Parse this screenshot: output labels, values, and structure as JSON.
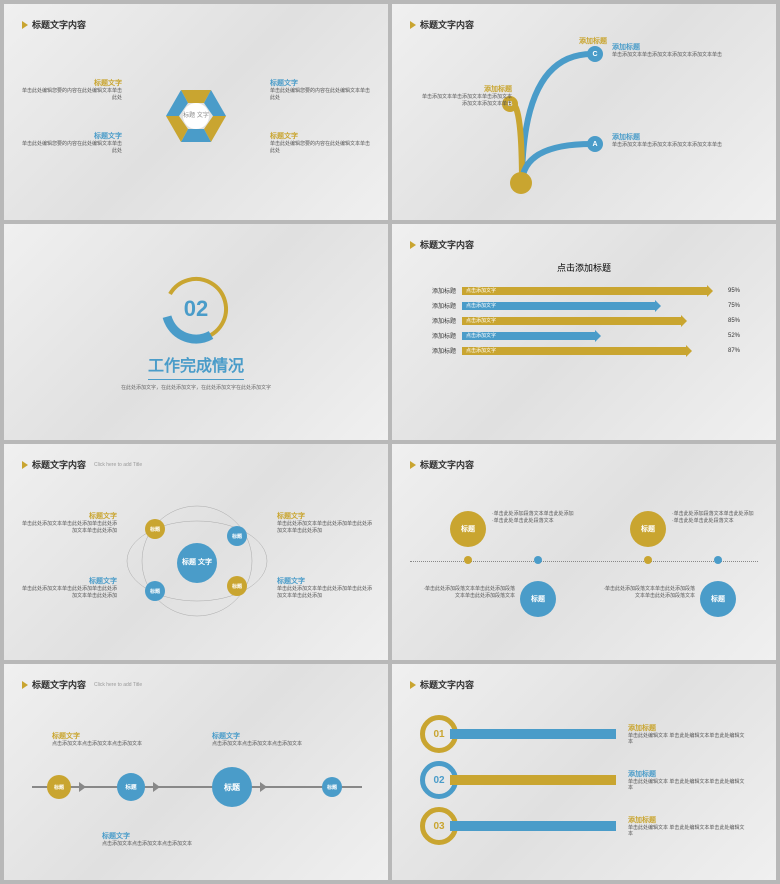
{
  "colors": {
    "gold": "#c9a530",
    "blue": "#4a9cc9",
    "txt": "#333",
    "sub": "#777"
  },
  "hdr": {
    "title": "标题文字内容",
    "sub": "Click here to add Title"
  },
  "s1": {
    "center": "标题\n文字",
    "items": [
      {
        "t": "标题文字",
        "d": "单击此处编辑您要的内容在此处编辑文本单击此处",
        "c": "#c9a530"
      },
      {
        "t": "标题文字",
        "d": "单击此处编辑您要的内容在此处编辑文本单击此处",
        "c": "#4a9cc9"
      },
      {
        "t": "标题文字",
        "d": "单击此处编辑您要的内容在此处编辑文本单击此处",
        "c": "#4a9cc9"
      },
      {
        "t": "标题文字",
        "d": "单击此处编辑您要的内容在此处编辑文本单击此处",
        "c": "#c9a530"
      }
    ]
  },
  "s2": {
    "nodes": [
      {
        "id": "C",
        "t": "添加标题",
        "d": "单击添加文本单击添加文本添加文本添加文本单击",
        "c": "#4a9cc9"
      },
      {
        "id": "B",
        "t": "添加标题",
        "d": "单击添加文本单击添加文本单击添加文本添加文本添加文本单击",
        "c": "#c9a530"
      },
      {
        "id": "A",
        "t": "添加标题",
        "d": "单击添加文本单击添加文本添加文本添加文本单击",
        "c": "#4a9cc9"
      }
    ]
  },
  "s3": {
    "num": "02",
    "title": "工作完成情况",
    "sub": "在此处添加文字，在此处添加文字，在此处添加文字在此处添加文字"
  },
  "s4": {
    "title": "点击添加标题",
    "rows": [
      {
        "lbl": "添加标题",
        "txt": "点击添加文字",
        "v": 95,
        "c": "#c9a530"
      },
      {
        "lbl": "添加标题",
        "txt": "点击添加文字",
        "v": 75,
        "c": "#4a9cc9"
      },
      {
        "lbl": "添加标题",
        "txt": "点击添加文字",
        "v": 85,
        "c": "#c9a530"
      },
      {
        "lbl": "添加标题",
        "txt": "点击添加文字",
        "v": 52,
        "c": "#4a9cc9"
      },
      {
        "lbl": "添加标题",
        "txt": "点击添加文字",
        "v": 87,
        "c": "#c9a530"
      }
    ]
  },
  "s5": {
    "center": "标题\n文字",
    "sats": [
      {
        "t": "标题",
        "c": "#c9a530"
      },
      {
        "t": "标题",
        "c": "#4a9cc9"
      },
      {
        "t": "标题",
        "c": "#4a9cc9"
      },
      {
        "t": "标题",
        "c": "#c9a530"
      }
    ],
    "items": [
      {
        "t": "标题文字",
        "d": "单击此处添加文本单击此处添加单击此处添加文本单击此处添加",
        "c": "#c9a530"
      },
      {
        "t": "标题文字",
        "d": "单击此处添加文本单击此处添加单击此处添加文本单击此处添加",
        "c": "#c9a530"
      },
      {
        "t": "标题文字",
        "d": "单击此处添加文本单击此处添加单击此处添加文本单击此处添加",
        "c": "#4a9cc9"
      },
      {
        "t": "标题文字",
        "d": "单击此处添加文本单击此处添加单击此处添加文本单击此处添加",
        "c": "#4a9cc9"
      }
    ]
  },
  "s6": {
    "top": [
      {
        "t": "标题",
        "d": "·单击此处添加段落文本单击此处添加\n·单击此处单击此处段落文本",
        "c": "#c9a530"
      },
      {
        "t": "标题",
        "d": "·单击此处添加段落文本单击此处添加\n·单击此处单击此处段落文本",
        "c": "#c9a530"
      }
    ],
    "bot": [
      {
        "t": "标题",
        "d": "·单击此处添加段落文本单击此处添加段落文本单击此处添加段落文本",
        "c": "#4a9cc9"
      },
      {
        "t": "标题",
        "d": "·单击此处添加段落文本单击此处添加段落文本单击此处添加段落文本",
        "c": "#4a9cc9"
      }
    ]
  },
  "s7": {
    "nodes": [
      {
        "t": "标题",
        "c": "#c9a530",
        "sz": 24
      },
      {
        "t": "标题",
        "c": "#4a9cc9",
        "sz": 28
      },
      {
        "t": "标题",
        "c": "#4a9cc9",
        "sz": 40
      },
      {
        "t": "标题",
        "c": "#4a9cc9",
        "sz": 20
      }
    ],
    "cap": [
      {
        "t": "标题文字",
        "d": "点击添加文本点击添加文本点击添加文本"
      },
      {
        "t": "标题文字",
        "d": "点击添加文本点击添加文本点击添加文本"
      },
      {
        "t": "标题文字",
        "d": "点击添加文本点击添加文本点击添加文本"
      }
    ]
  },
  "s8": {
    "items": [
      {
        "n": "01",
        "t": "添加标题",
        "d": "单击此处编辑文本 单击此处编辑文本单击此处编辑文本",
        "rc": "#c9a530",
        "bc": "#4a9cc9",
        "tc": "#c9a530"
      },
      {
        "n": "02",
        "t": "添加标题",
        "d": "单击此处编辑文本 单击此处编辑文本单击此处编辑文本",
        "rc": "#4a9cc9",
        "bc": "#c9a530",
        "tc": "#4a9cc9"
      },
      {
        "n": "03",
        "t": "添加标题",
        "d": "单击此处编辑文本 单击此处编辑文本单击此处编辑文本",
        "rc": "#c9a530",
        "bc": "#4a9cc9",
        "tc": "#c9a530"
      }
    ]
  }
}
